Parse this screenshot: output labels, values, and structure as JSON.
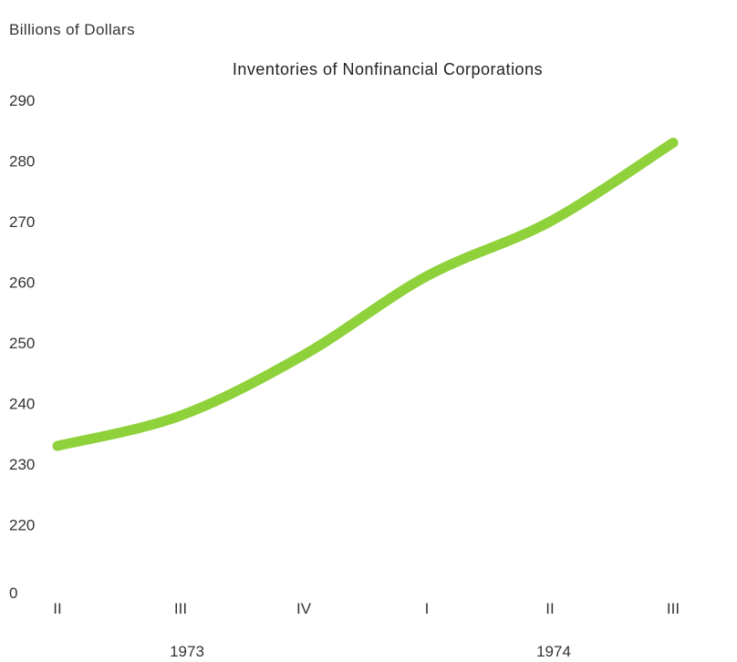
{
  "chart_data": {
    "type": "line",
    "title": "Inventories of Nonfinancial Corporations",
    "ylabel": "Billions of Dollars",
    "xlabel": "",
    "categories": [
      "II",
      "III",
      "IV",
      "I",
      "II",
      "III"
    ],
    "years": [
      {
        "label": "1973",
        "spans": [
          "II",
          "IV"
        ]
      },
      {
        "label": "1974",
        "spans": [
          "I",
          "III"
        ]
      }
    ],
    "series": [
      {
        "values": [
          233,
          238,
          248,
          261,
          270,
          283
        ],
        "color": "#8fd13a"
      }
    ],
    "yticks": [
      "290",
      "280",
      "270",
      "260",
      "250",
      "240",
      "230",
      "220",
      "0"
    ],
    "ylim": [
      220,
      290
    ],
    "axis_break": true,
    "grid": false
  }
}
